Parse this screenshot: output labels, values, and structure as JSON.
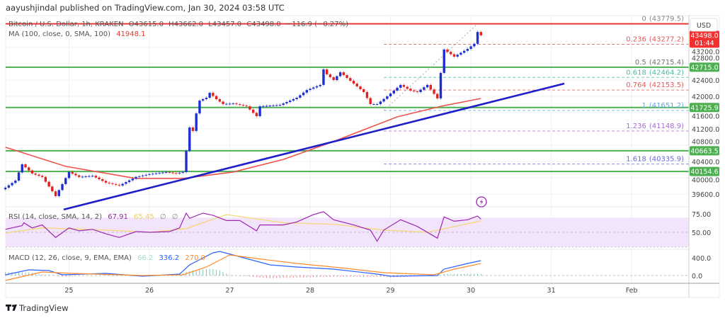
{
  "header": {
    "publisher": "aayushjindal published on TradingView.com, Jan 30, 2024 03:58 UTC"
  },
  "legend": {
    "symbol": "Bitcoin / U.S. Dollar, 1h, KRAKEN",
    "open": "O43615.0",
    "high": "H43662.0",
    "low": "L43457.0",
    "close": "C43498.0",
    "change": "−116.9 (−0.27%)",
    "ma_label": "MA (100, close, 0, SMA, 100)",
    "ma_value": "41948.1"
  },
  "rsi_legend": {
    "label": "RSI (14, close, SMA, 14, 2)",
    "value": "67.91",
    "ma_value": "65.45",
    "extra1": "∅",
    "extra2": "∅"
  },
  "macd_legend": {
    "label": "MACD (12, 26, close, 9, EMA, EMA)",
    "hist": "66.2",
    "macd": "336.2",
    "signal": "270.0"
  },
  "currency": "USD",
  "last_price": {
    "price": "43498.0",
    "countdown": "01:44"
  },
  "brand": "TradingView",
  "icons": [
    "tradingview-logo-icon",
    "lightning-event-icon"
  ],
  "colors": {
    "up": "#1e2fd0",
    "down": "#e0211f",
    "ma": "#ef5350",
    "trendline": "#1f1fc8",
    "support": "#4caf50",
    "resistance": "#e53935",
    "rsi": "#9c27b0",
    "rsi_ma": "#f5d77a",
    "rsi_band": "#f1e4fb",
    "macd": "#2962ff",
    "signal": "#ff8a2b",
    "hist_pos": "#7fc4b5",
    "hist_neg": "#f28b8b"
  },
  "chart_data": {
    "type": "candlestick",
    "title": "Bitcoin / U.S. Dollar, 1h, KRAKEN",
    "price_axis": {
      "ticks": [
        "43200.0",
        "42800.0",
        "42400.0",
        "42000.0",
        "41600.0",
        "41200.0",
        "40800.0",
        "40400.0",
        "40000.0",
        "39600.0"
      ],
      "range": [
        39200,
        43900
      ]
    },
    "date_axis": {
      "ticks": [
        {
          "t": "2024-01-25T00:00",
          "label": "25"
        },
        {
          "t": "2024-01-26T00:00",
          "label": "26"
        },
        {
          "t": "2024-01-27T00:00",
          "label": "27"
        },
        {
          "t": "2024-01-28T00:00",
          "label": "28"
        },
        {
          "t": "2024-01-29T00:00",
          "label": "29"
        },
        {
          "t": "2024-01-30T00:00",
          "label": "30"
        },
        {
          "t": "2024-01-31T00:00",
          "label": "31"
        },
        {
          "t": "2024-02-01T00:00",
          "label": "Feb"
        }
      ]
    },
    "close_approx": [
      [
        "2024-01-24T05:00",
        39757
      ],
      [
        "2024-01-24T08:00",
        39930
      ],
      [
        "2024-01-24T10:00",
        40330
      ],
      [
        "2024-01-24T13:00",
        40105
      ],
      [
        "2024-01-24T16:00",
        40020
      ],
      [
        "2024-01-24T20:00",
        39550
      ],
      [
        "2024-01-25T00:00",
        40140
      ],
      [
        "2024-01-25T03:00",
        40020
      ],
      [
        "2024-01-25T07:00",
        40050
      ],
      [
        "2024-01-25T11:00",
        39880
      ],
      [
        "2024-01-25T15:00",
        39810
      ],
      [
        "2024-01-25T20:00",
        40020
      ],
      [
        "2024-01-26T00:00",
        40090
      ],
      [
        "2024-01-26T05:00",
        40140
      ],
      [
        "2024-01-26T08:00",
        40105
      ],
      [
        "2024-01-26T10:00",
        40140
      ],
      [
        "2024-01-26T11:00",
        40660
      ],
      [
        "2024-01-26T12:00",
        41235
      ],
      [
        "2024-01-26T13:00",
        41150
      ],
      [
        "2024-01-26T14:00",
        41580
      ],
      [
        "2024-01-26T15:00",
        41895
      ],
      [
        "2024-01-26T17:00",
        41965
      ],
      [
        "2024-01-26T18:00",
        42085
      ],
      [
        "2024-01-26T20:00",
        41930
      ],
      [
        "2024-01-26T22:00",
        41810
      ],
      [
        "2024-01-27T01:00",
        41825
      ],
      [
        "2024-01-27T05:00",
        41755
      ],
      [
        "2024-01-27T08:00",
        41513
      ],
      [
        "2024-01-27T09:00",
        41755
      ],
      [
        "2024-01-27T15:00",
        41790
      ],
      [
        "2024-01-27T20:00",
        41965
      ],
      [
        "2024-01-27T23:00",
        42155
      ],
      [
        "2024-01-28T03:00",
        42280
      ],
      [
        "2024-01-28T04:00",
        42660
      ],
      [
        "2024-01-28T05:00",
        42540
      ],
      [
        "2024-01-28T07:00",
        42400
      ],
      [
        "2024-01-28T09:00",
        42590
      ],
      [
        "2024-01-28T11:00",
        42450
      ],
      [
        "2024-01-28T13:00",
        42313
      ],
      [
        "2024-01-28T16:00",
        42105
      ],
      [
        "2024-01-28T18:00",
        41810
      ],
      [
        "2024-01-28T20:00",
        41810
      ],
      [
        "2024-01-28T23:00",
        42000
      ],
      [
        "2024-01-29T03:00",
        42280
      ],
      [
        "2024-01-29T06:00",
        42140
      ],
      [
        "2024-01-29T08:00",
        42105
      ],
      [
        "2024-01-29T11:00",
        42280
      ],
      [
        "2024-01-29T14:00",
        41950
      ],
      [
        "2024-01-29T15:00",
        42575
      ],
      [
        "2024-01-29T16:00",
        43150
      ],
      [
        "2024-01-29T19:00",
        42975
      ],
      [
        "2024-01-29T23:00",
        43165
      ],
      [
        "2024-01-30T01:00",
        43290
      ],
      [
        "2024-01-30T02:00",
        43580
      ],
      [
        "2024-01-30T03:00",
        43498
      ]
    ],
    "ma100": [
      [
        "2024-01-24T05:00",
        40750
      ],
      [
        "2024-01-24T23:00",
        40280
      ],
      [
        "2024-01-25T20:00",
        39985
      ],
      [
        "2024-01-26T10:00",
        39985
      ],
      [
        "2024-01-27T01:00",
        40140
      ],
      [
        "2024-01-27T16:00",
        40450
      ],
      [
        "2024-01-28T07:00",
        40890
      ],
      [
        "2024-01-29T02:00",
        41495
      ],
      [
        "2024-01-29T15:00",
        41755
      ],
      [
        "2024-01-30T03:00",
        41948.1
      ]
    ],
    "trendline": [
      [
        "2024-01-24T22:24",
        39220
      ],
      [
        "2024-01-31T03:54",
        42313
      ]
    ],
    "horizontal_levels": [
      {
        "price": 43779.5,
        "kind": "resistance"
      },
      {
        "price": 42715.0,
        "kind": "support",
        "label": "42715.0"
      },
      {
        "price": 41725.9,
        "kind": "support",
        "label": "41725.9"
      },
      {
        "price": 40663.5,
        "kind": "support",
        "label": "40663.5"
      },
      {
        "price": 40154.6,
        "kind": "support",
        "label": "40154.6"
      }
    ],
    "fibonacci": {
      "from": [
        "2024-01-28T22:00",
        41651.2
      ],
      "to": [
        "2024-01-30T02:00",
        43779.5
      ],
      "levels": [
        {
          "ratio": "0",
          "price": "43779.5",
          "color": "#888888"
        },
        {
          "ratio": "0.236",
          "price": "43277.2",
          "color": "#e05a5a"
        },
        {
          "ratio": "0.5",
          "price": "42715.4",
          "color": "#777777"
        },
        {
          "ratio": "0.618",
          "price": "42464.2",
          "color": "#4fb9a4"
        },
        {
          "ratio": "0.764",
          "price": "42153.5",
          "color": "#e05a5a"
        },
        {
          "ratio": "1",
          "price": "41651.2",
          "color": "#64a8e0"
        },
        {
          "ratio": "1.236",
          "price": "41148.9",
          "color": "#a66bd0"
        },
        {
          "ratio": "1.618",
          "price": "40335.9",
          "color": "#6a6ad8"
        }
      ]
    },
    "rsi": {
      "axis_ticks": [
        "75.00",
        "50.00"
      ],
      "band": [
        30,
        70
      ],
      "values": [
        [
          "2024-01-24T05:00",
          54
        ],
        [
          "2024-01-24T10:00",
          59
        ],
        [
          "2024-01-24T10:30",
          63
        ],
        [
          "2024-01-24T13:00",
          56
        ],
        [
          "2024-01-24T16:00",
          60
        ],
        [
          "2024-01-24T20:00",
          43
        ],
        [
          "2024-01-25T00:00",
          56
        ],
        [
          "2024-01-25T03:00",
          52
        ],
        [
          "2024-01-25T07:00",
          54
        ],
        [
          "2024-01-25T11:00",
          48
        ],
        [
          "2024-01-25T15:00",
          43
        ],
        [
          "2024-01-25T20:00",
          51
        ],
        [
          "2024-01-26T00:00",
          50
        ],
        [
          "2024-01-26T06:00",
          51
        ],
        [
          "2024-01-26T09:00",
          56
        ],
        [
          "2024-01-26T11:00",
          76
        ],
        [
          "2024-01-26T12:00",
          69
        ],
        [
          "2024-01-26T16:00",
          76
        ],
        [
          "2024-01-26T19:00",
          73
        ],
        [
          "2024-01-26T23:00",
          66
        ],
        [
          "2024-01-27T03:00",
          66
        ],
        [
          "2024-01-27T08:00",
          52
        ],
        [
          "2024-01-27T09:00",
          60
        ],
        [
          "2024-01-27T16:00",
          60
        ],
        [
          "2024-01-27T20:00",
          64
        ],
        [
          "2024-01-28T01:00",
          74
        ],
        [
          "2024-01-28T04:00",
          78
        ],
        [
          "2024-01-28T07:00",
          67
        ],
        [
          "2024-01-28T13:00",
          60
        ],
        [
          "2024-01-28T18:00",
          53
        ],
        [
          "2024-01-28T20:00",
          38
        ],
        [
          "2024-01-28T22:00",
          53
        ],
        [
          "2024-01-29T03:00",
          67
        ],
        [
          "2024-01-29T08:00",
          58
        ],
        [
          "2024-01-29T14:00",
          42
        ],
        [
          "2024-01-29T16:00",
          71
        ],
        [
          "2024-01-29T19:00",
          65
        ],
        [
          "2024-01-29T23:00",
          67
        ],
        [
          "2024-01-30T02:00",
          72
        ],
        [
          "2024-01-30T03:00",
          67.91
        ]
      ],
      "ma": [
        [
          "2024-01-24T05:00",
          49
        ],
        [
          "2024-01-24T16:00",
          56
        ],
        [
          "2024-01-25T11:00",
          53
        ],
        [
          "2024-01-26T00:00",
          50
        ],
        [
          "2024-01-26T11:00",
          55
        ],
        [
          "2024-01-26T23:00",
          74
        ],
        [
          "2024-01-27T16:00",
          63
        ],
        [
          "2024-01-28T07:00",
          61
        ],
        [
          "2024-01-28T22:00",
          53
        ],
        [
          "2024-01-29T11:00",
          50
        ],
        [
          "2024-01-30T03:00",
          65.45
        ]
      ]
    },
    "macd": {
      "axis_ticks": [
        "400.0",
        "0.0"
      ],
      "macd": [
        [
          "2024-01-24T05:00",
          16
        ],
        [
          "2024-01-24T12:00",
          128
        ],
        [
          "2024-01-24T18:00",
          112
        ],
        [
          "2024-01-24T22:00",
          16
        ],
        [
          "2024-01-25T11:00",
          48
        ],
        [
          "2024-01-25T22:00",
          -16
        ],
        [
          "2024-01-26T09:00",
          32
        ],
        [
          "2024-01-26T12:00",
          240
        ],
        [
          "2024-01-26T19:00",
          512
        ],
        [
          "2024-01-26T21:00",
          544
        ],
        [
          "2024-01-27T01:00",
          464
        ],
        [
          "2024-01-27T12:00",
          240
        ],
        [
          "2024-01-27T20:00",
          192
        ],
        [
          "2024-01-28T07:00",
          144
        ],
        [
          "2024-01-28T20:00",
          32
        ],
        [
          "2024-01-29T00:00",
          -16
        ],
        [
          "2024-01-29T14:00",
          0
        ],
        [
          "2024-01-29T16:00",
          144
        ],
        [
          "2024-01-29T23:00",
          272
        ],
        [
          "2024-01-30T03:00",
          336.2
        ]
      ],
      "signal": [
        [
          "2024-01-24T05:00",
          -112
        ],
        [
          "2024-01-24T16:00",
          80
        ],
        [
          "2024-01-25T01:00",
          48
        ],
        [
          "2024-01-25T22:00",
          0
        ],
        [
          "2024-01-26T10:00",
          16
        ],
        [
          "2024-01-26T17:00",
          192
        ],
        [
          "2024-01-27T00:00",
          464
        ],
        [
          "2024-01-27T08:00",
          384
        ],
        [
          "2024-01-27T20:00",
          272
        ],
        [
          "2024-01-28T09:00",
          176
        ],
        [
          "2024-01-28T22:00",
          64
        ],
        [
          "2024-01-29T13:00",
          16
        ],
        [
          "2024-01-29T19:00",
          144
        ],
        [
          "2024-01-30T03:00",
          270.0
        ]
      ]
    }
  }
}
